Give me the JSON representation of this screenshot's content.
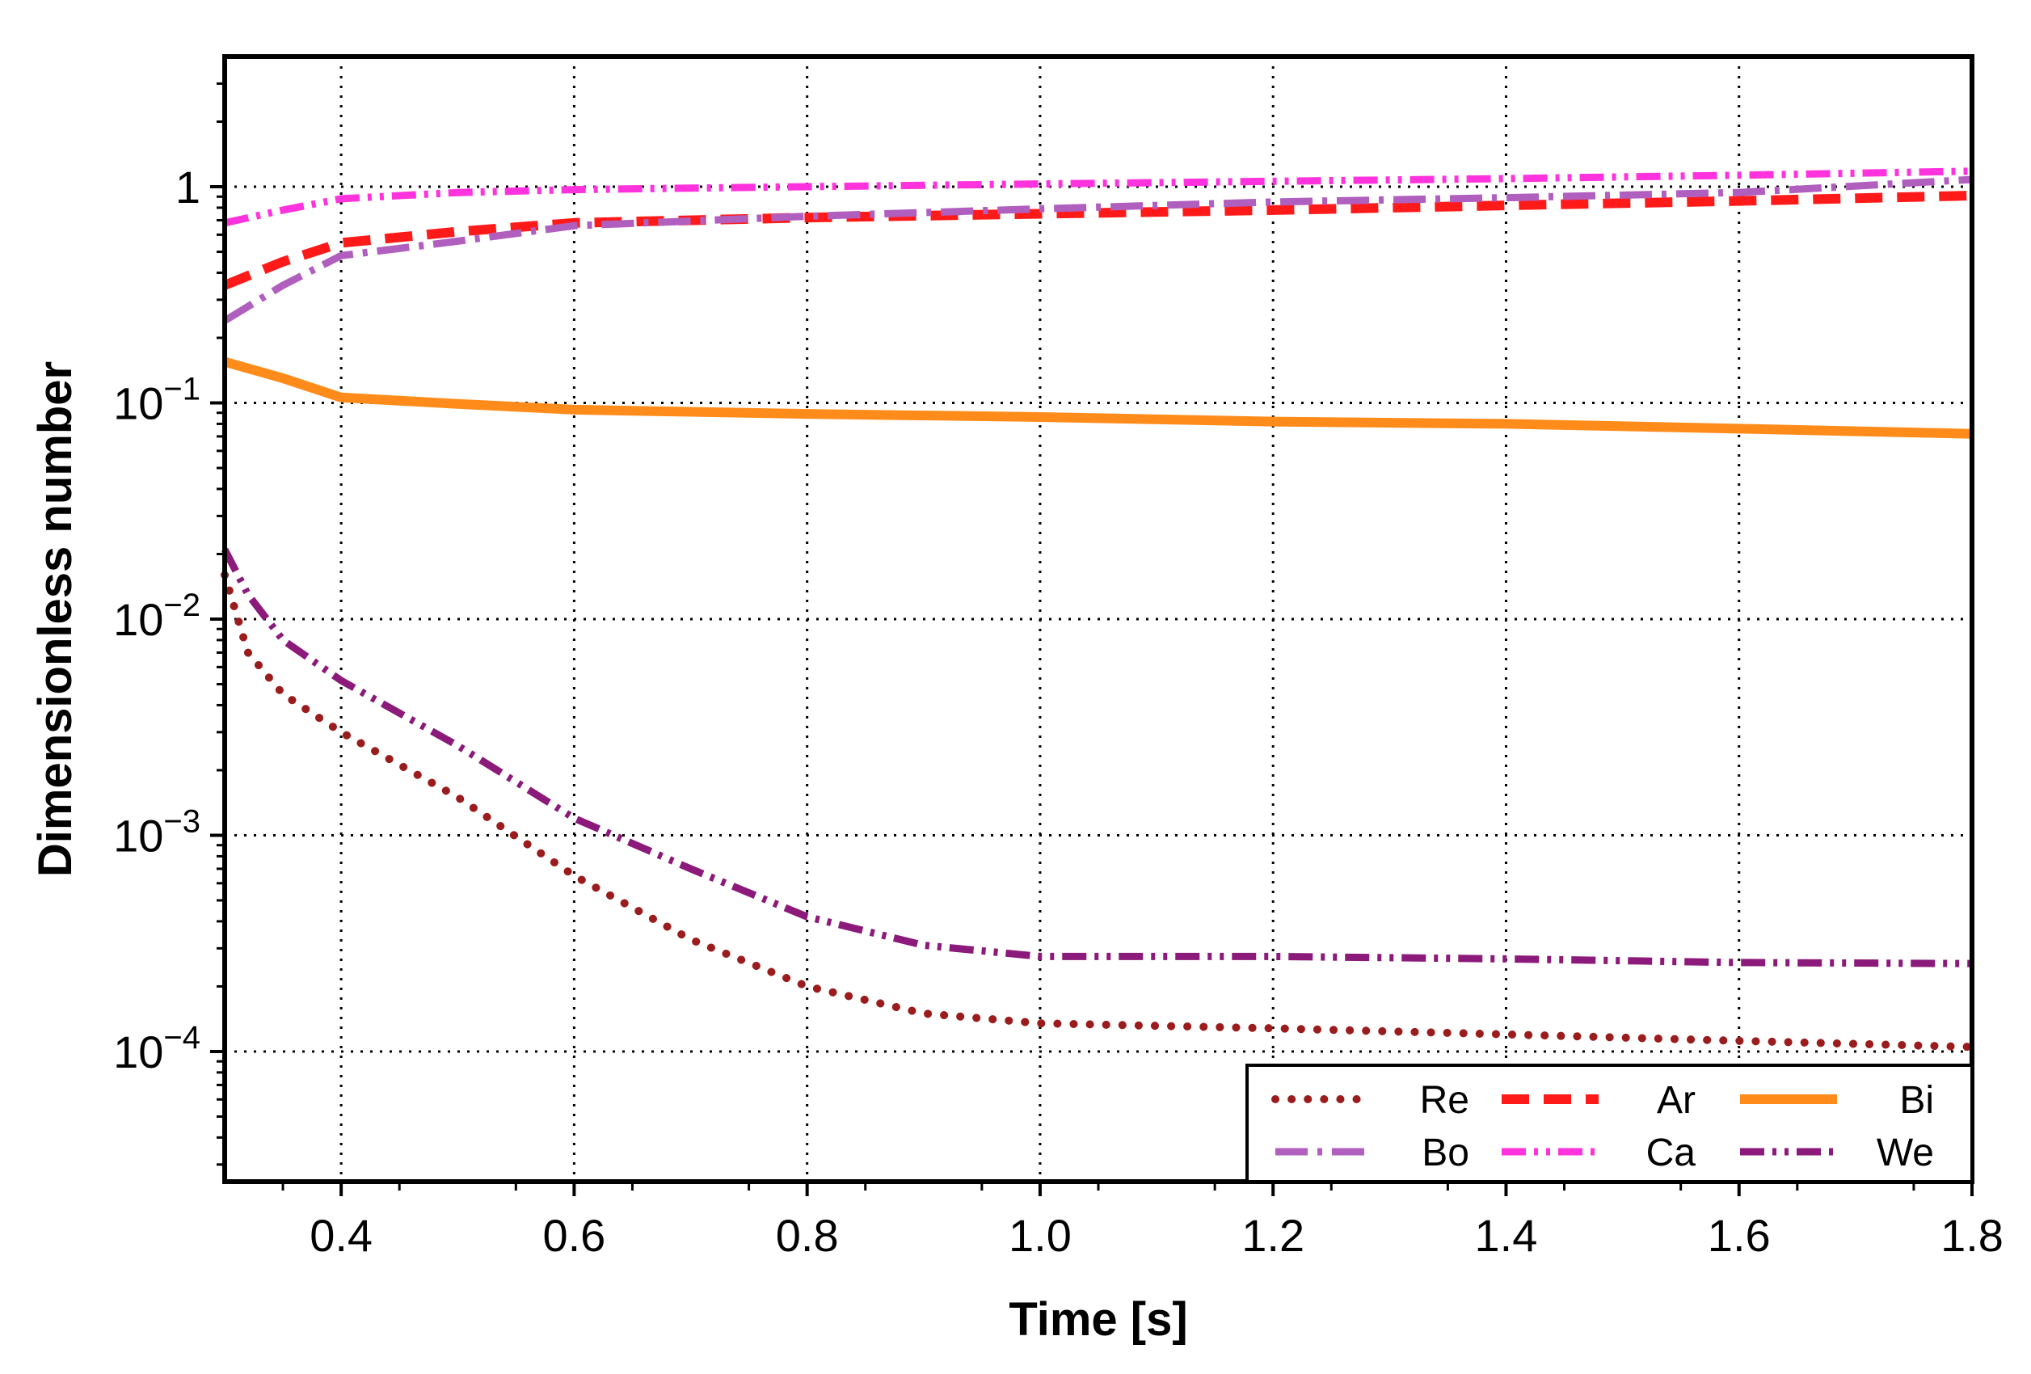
{
  "chart_data": {
    "type": "line",
    "title": "",
    "xlabel": "Time [s]",
    "ylabel": "Dimensionless number",
    "xscale": "linear",
    "yscale": "log",
    "xlim": [
      0.3,
      1.8
    ],
    "ylim": [
      2.5e-05,
      4
    ],
    "xticks": [
      0.4,
      0.6,
      0.8,
      1.0,
      1.2,
      1.4,
      1.6,
      1.8
    ],
    "xtick_labels": [
      "0.4",
      "0.6",
      "0.8",
      "1.0",
      "1.2",
      "1.4",
      "1.6",
      "1.8"
    ],
    "yticks": [
      {
        "value": 1,
        "base": "1",
        "exp": ""
      },
      {
        "value": 0.1,
        "base": "10",
        "exp": "−1"
      },
      {
        "value": 0.01,
        "base": "10",
        "exp": "−2"
      },
      {
        "value": 0.001,
        "base": "10",
        "exp": "−3"
      },
      {
        "value": 0.0001,
        "base": "10",
        "exp": "−4"
      }
    ],
    "grid": true,
    "legend_position": "bottom-right",
    "series": [
      {
        "name": "Re",
        "color": "#9b1c1c",
        "style": "dotted",
        "x": [
          0.3,
          0.32,
          0.35,
          0.4,
          0.5,
          0.6,
          0.7,
          0.8,
          0.9,
          1.0,
          1.2,
          1.4,
          1.6,
          1.8
        ],
        "y": [
          0.016,
          0.007,
          0.0045,
          0.003,
          0.0015,
          0.00065,
          0.00033,
          0.0002,
          0.00015,
          0.000135,
          0.000128,
          0.00012,
          0.000112,
          0.000105
        ]
      },
      {
        "name": "Ar",
        "color": "#ff1a1a",
        "style": "dashed",
        "x": [
          0.3,
          0.35,
          0.4,
          0.5,
          0.6,
          0.8,
          1.0,
          1.2,
          1.4,
          1.6,
          1.8
        ],
        "y": [
          0.35,
          0.45,
          0.55,
          0.62,
          0.68,
          0.72,
          0.75,
          0.78,
          0.82,
          0.86,
          0.91
        ]
      },
      {
        "name": "Bi",
        "color": "#ff8c1a",
        "style": "solid",
        "x": [
          0.3,
          0.35,
          0.4,
          0.5,
          0.6,
          0.8,
          1.0,
          1.2,
          1.4,
          1.6,
          1.8
        ],
        "y": [
          0.155,
          0.13,
          0.106,
          0.099,
          0.093,
          0.089,
          0.086,
          0.082,
          0.08,
          0.076,
          0.072
        ]
      },
      {
        "name": "Bo",
        "color": "#b05fbf",
        "style": "dash-dot",
        "x": [
          0.3,
          0.35,
          0.4,
          0.5,
          0.6,
          0.8,
          1.0,
          1.2,
          1.4,
          1.6,
          1.8
        ],
        "y": [
          0.24,
          0.35,
          0.48,
          0.56,
          0.66,
          0.73,
          0.79,
          0.85,
          0.89,
          0.94,
          1.08
        ]
      },
      {
        "name": "Ca",
        "color": "#ff33dd",
        "style": "dash-dot-dot",
        "x": [
          0.3,
          0.35,
          0.4,
          0.5,
          0.6,
          0.8,
          1.0,
          1.2,
          1.4,
          1.6,
          1.8
        ],
        "y": [
          0.68,
          0.78,
          0.88,
          0.94,
          0.97,
          1.0,
          1.03,
          1.06,
          1.09,
          1.13,
          1.18
        ]
      },
      {
        "name": "We",
        "color": "#8b1a7a",
        "style": "dash-dot-dot",
        "x": [
          0.3,
          0.32,
          0.35,
          0.4,
          0.5,
          0.6,
          0.7,
          0.8,
          0.9,
          1.0,
          1.2,
          1.4,
          1.6,
          1.8
        ],
        "y": [
          0.021,
          0.013,
          0.008,
          0.0052,
          0.0026,
          0.0012,
          0.0007,
          0.00042,
          0.00031,
          0.000275,
          0.000275,
          0.000268,
          0.000258,
          0.000255
        ]
      }
    ]
  }
}
